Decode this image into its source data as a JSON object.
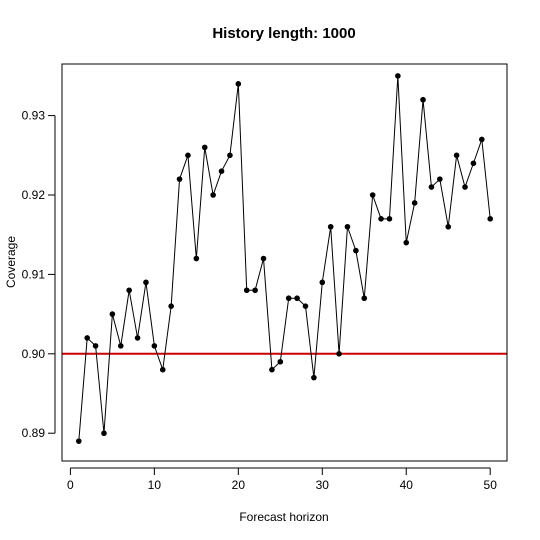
{
  "chart_data": {
    "type": "line",
    "title": "History length: 1000",
    "xlabel": "Forecast horizon",
    "ylabel": "Coverage",
    "xlim": [
      -1,
      52
    ],
    "ylim": [
      0.8865,
      0.9365
    ],
    "x_ticks": [
      0,
      10,
      20,
      30,
      40,
      50
    ],
    "x_tick_labels": [
      "0",
      "10",
      "20",
      "30",
      "40",
      "50"
    ],
    "y_ticks": [
      0.89,
      0.9,
      0.91,
      0.92,
      0.93
    ],
    "y_tick_labels": [
      "0.89",
      "0.90",
      "0.91",
      "0.92",
      "0.93"
    ],
    "grid": false,
    "series": [
      {
        "color": "#000000",
        "marker": "filled-circle",
        "x": [
          1,
          2,
          3,
          4,
          5,
          6,
          7,
          8,
          9,
          10,
          11,
          12,
          13,
          14,
          15,
          16,
          17,
          18,
          19,
          20,
          21,
          22,
          23,
          24,
          25,
          26,
          27,
          28,
          29,
          30,
          31,
          32,
          33,
          34,
          35,
          36,
          37,
          38,
          39,
          40,
          41,
          42,
          43,
          44,
          45,
          46,
          47,
          48,
          49,
          50
        ],
        "y": [
          0.889,
          0.902,
          0.901,
          0.89,
          0.905,
          0.901,
          0.908,
          0.902,
          0.909,
          0.901,
          0.898,
          0.906,
          0.922,
          0.925,
          0.912,
          0.926,
          0.92,
          0.923,
          0.925,
          0.934,
          0.908,
          0.908,
          0.912,
          0.898,
          0.899,
          0.907,
          0.907,
          0.906,
          0.897,
          0.909,
          0.916,
          0.9,
          0.916,
          0.913,
          0.907,
          0.92,
          0.917,
          0.917,
          0.935,
          0.914,
          0.919,
          0.932,
          0.921,
          0.922,
          0.916,
          0.925,
          0.921,
          0.924,
          0.927,
          0.917
        ]
      }
    ],
    "reference_lines": [
      {
        "orientation": "horizontal",
        "y": 0.9,
        "color": "#cc0000"
      }
    ]
  }
}
